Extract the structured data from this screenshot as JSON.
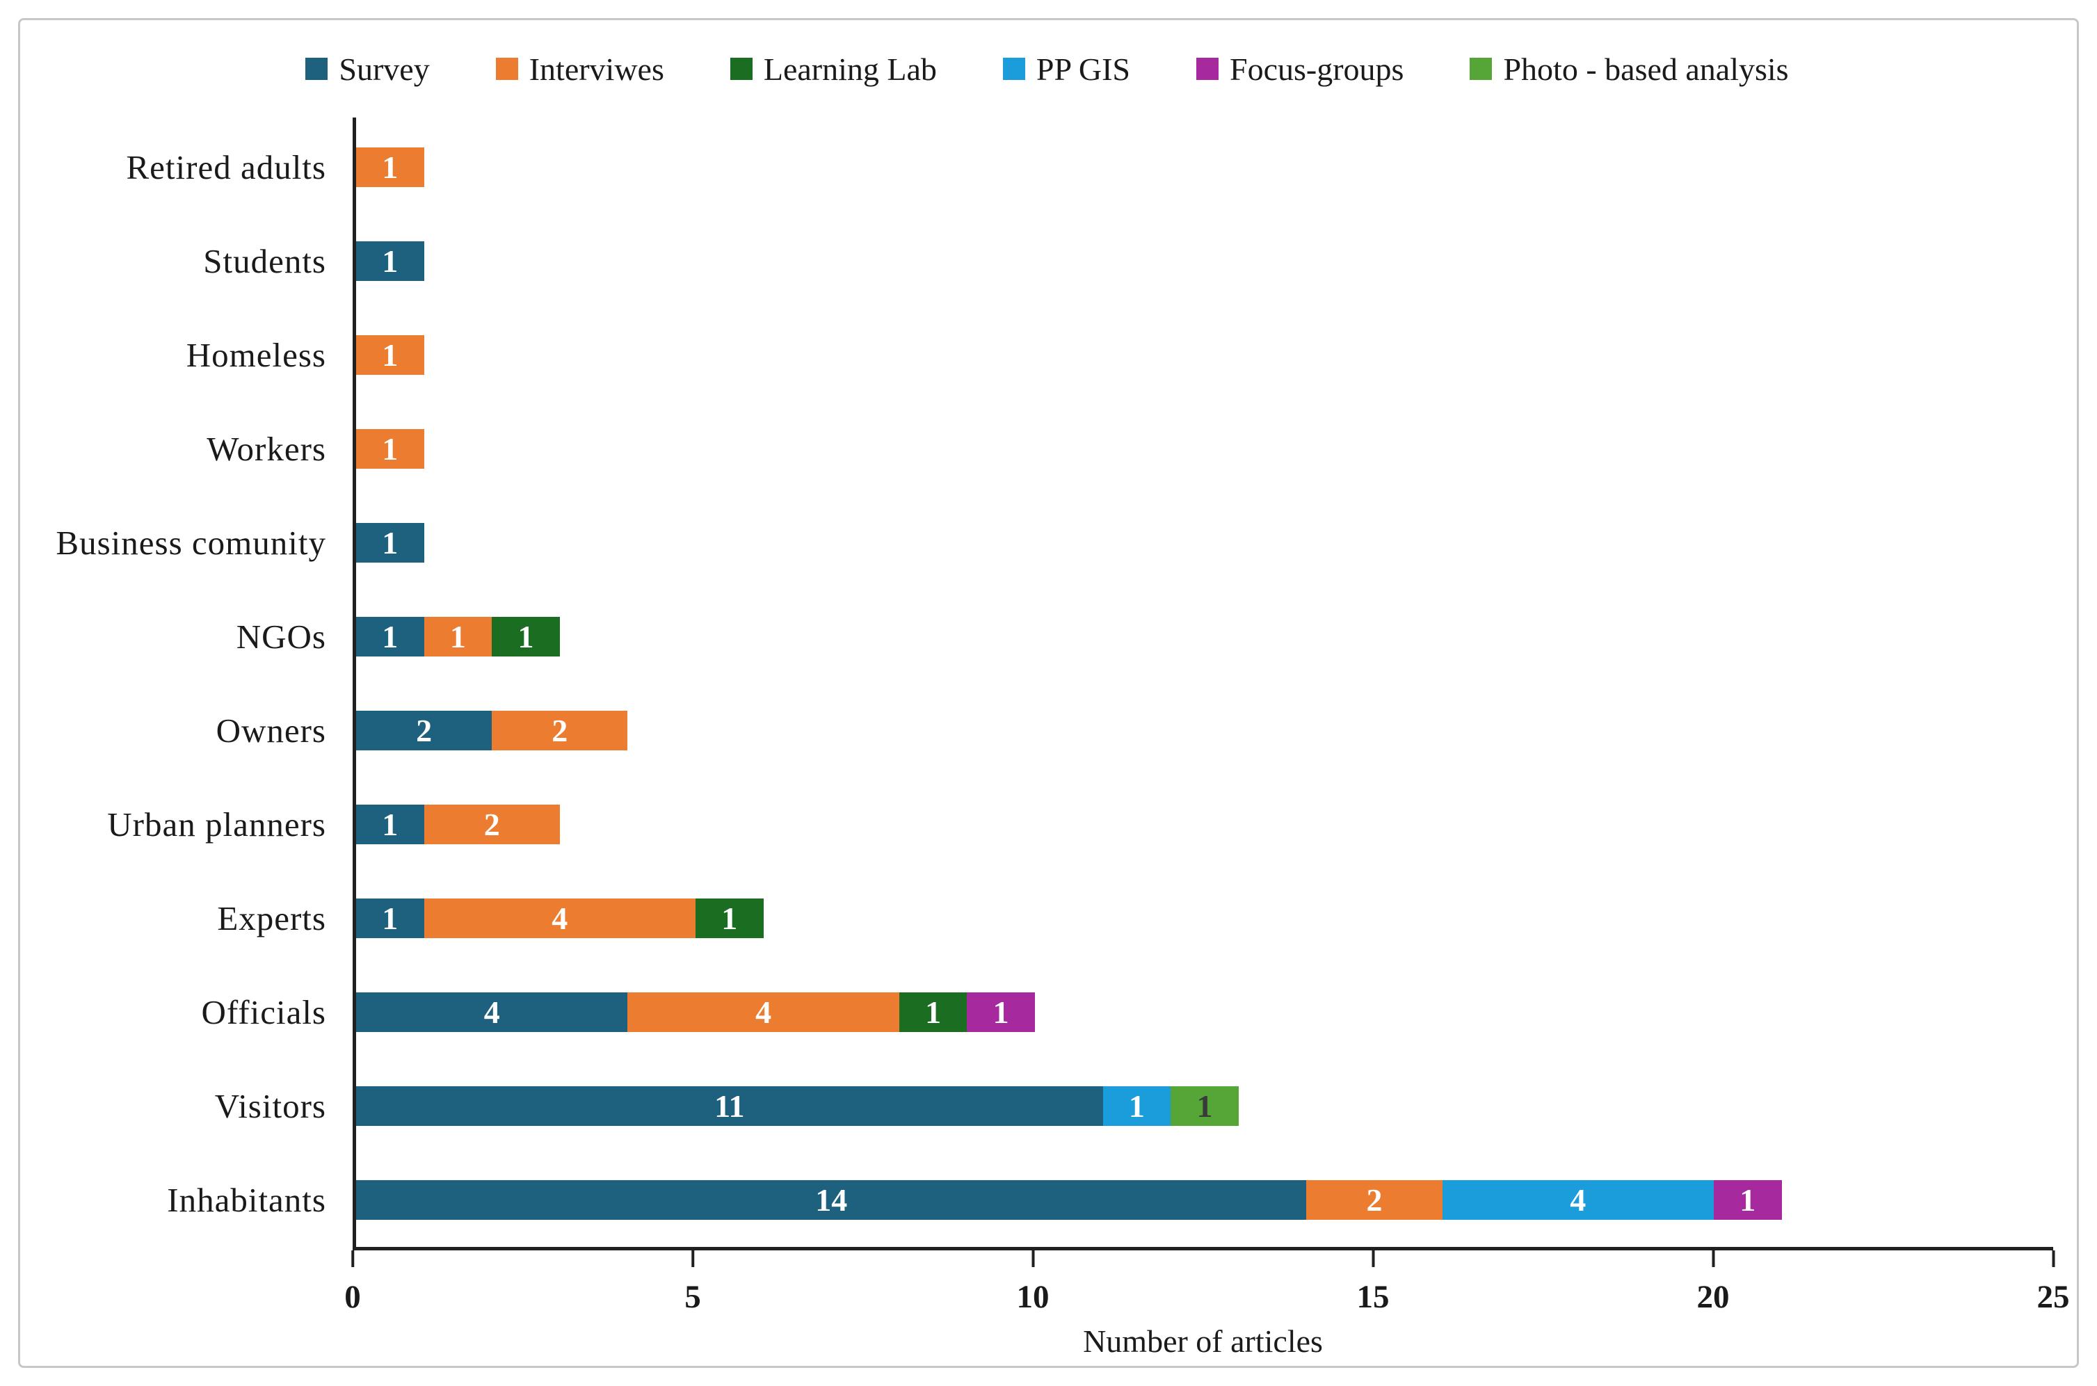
{
  "chart_data": {
    "type": "bar",
    "orientation": "horizontal",
    "stacked": true,
    "title": "",
    "xlabel": "Number of articles",
    "xlim": [
      0,
      25
    ],
    "xticks": [
      0,
      5,
      10,
      15,
      20,
      25
    ],
    "grid": false,
    "legend_position": "top",
    "series": [
      {
        "name": "Survey",
        "color": "#1E617F",
        "label_color": "#ffffff"
      },
      {
        "name": "Interviwes",
        "color": "#EC7C30",
        "label_color": "#ffffff"
      },
      {
        "name": "Learning Lab",
        "color": "#1B6E21",
        "label_color": "#ffffff"
      },
      {
        "name": "PP GIS",
        "color": "#1B9DDB",
        "label_color": "#ffffff"
      },
      {
        "name": "Focus-groups",
        "color": "#A62A9E",
        "label_color": "#ffffff"
      },
      {
        "name": "Photo - based analysis",
        "color": "#55A636",
        "label_color": "#3a3a3a"
      }
    ],
    "categories": [
      "Retired adults",
      "Students",
      "Homeless",
      "Workers",
      "Business comunity",
      "NGOs",
      "Owners",
      "Urban planners",
      "Experts",
      "Officials",
      "Visitors",
      "Inhabitants"
    ],
    "rows": [
      {
        "category": "Retired adults",
        "segments": [
          {
            "series": "Interviwes",
            "value": 1
          }
        ]
      },
      {
        "category": "Students",
        "segments": [
          {
            "series": "Survey",
            "value": 1
          }
        ]
      },
      {
        "category": "Homeless",
        "segments": [
          {
            "series": "Interviwes",
            "value": 1
          }
        ]
      },
      {
        "category": "Workers",
        "segments": [
          {
            "series": "Interviwes",
            "value": 1
          }
        ]
      },
      {
        "category": "Business comunity",
        "segments": [
          {
            "series": "Survey",
            "value": 1
          }
        ]
      },
      {
        "category": "NGOs",
        "segments": [
          {
            "series": "Survey",
            "value": 1
          },
          {
            "series": "Interviwes",
            "value": 1
          },
          {
            "series": "Learning Lab",
            "value": 1
          }
        ]
      },
      {
        "category": "Owners",
        "segments": [
          {
            "series": "Survey",
            "value": 2
          },
          {
            "series": "Interviwes",
            "value": 2
          }
        ]
      },
      {
        "category": "Urban planners",
        "segments": [
          {
            "series": "Survey",
            "value": 1
          },
          {
            "series": "Interviwes",
            "value": 2
          }
        ]
      },
      {
        "category": "Experts",
        "segments": [
          {
            "series": "Survey",
            "value": 1
          },
          {
            "series": "Interviwes",
            "value": 4
          },
          {
            "series": "Learning Lab",
            "value": 1
          }
        ]
      },
      {
        "category": "Officials",
        "segments": [
          {
            "series": "Survey",
            "value": 4
          },
          {
            "series": "Interviwes",
            "value": 4
          },
          {
            "series": "Learning Lab",
            "value": 1
          },
          {
            "series": "Focus-groups",
            "value": 1
          }
        ]
      },
      {
        "category": "Visitors",
        "segments": [
          {
            "series": "Survey",
            "value": 11
          },
          {
            "series": "PP GIS",
            "value": 1
          },
          {
            "series": "Photo - based analysis",
            "value": 1
          }
        ]
      },
      {
        "category": "Inhabitants",
        "segments": [
          {
            "series": "Survey",
            "value": 14
          },
          {
            "series": "Interviwes",
            "value": 2
          },
          {
            "series": "PP GIS",
            "value": 4
          },
          {
            "series": "Focus-groups",
            "value": 1
          }
        ]
      }
    ]
  }
}
